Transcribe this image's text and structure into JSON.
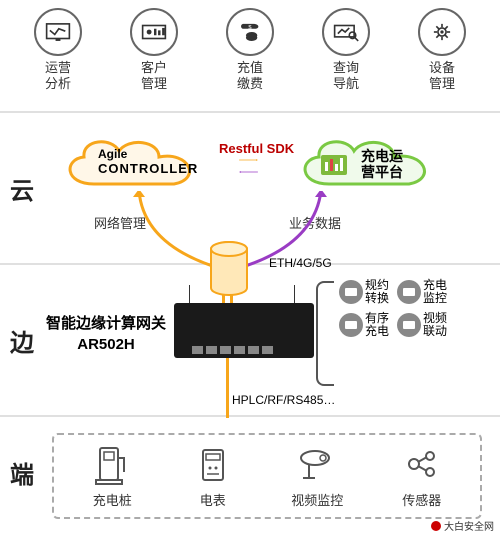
{
  "top_icons": [
    {
      "label": "运营\n分析",
      "name": "analytics-icon"
    },
    {
      "label": "客户\n管理",
      "name": "customer-icon"
    },
    {
      "label": "充值\n缴费",
      "name": "recharge-icon"
    },
    {
      "label": "查询\n导航",
      "name": "query-icon"
    },
    {
      "label": "设备\n管理",
      "name": "device-icon"
    }
  ],
  "layers": {
    "cloud": "云",
    "edge": "边",
    "end": "端"
  },
  "cloud": {
    "controller_top": "Agile",
    "controller_bottom": "CONTROLLER",
    "platform": "充电运\n营平台",
    "sdk": "Restful SDK",
    "link_left": "网络管理",
    "link_right": "业务数据",
    "eth": "ETH/4G/5G"
  },
  "edge": {
    "gateway_line1": "智能边缘计算网关",
    "gateway_line2": "AR502H",
    "features": [
      {
        "label": "规约\n转换"
      },
      {
        "label": "充电\n监控"
      },
      {
        "label": "有序\n充电"
      },
      {
        "label": "视频\n联动"
      }
    ],
    "hplc": "HPLC/RF/RS485…"
  },
  "end": {
    "items": [
      {
        "label": "充电桩",
        "name": "charger-icon"
      },
      {
        "label": "电表",
        "name": "meter-icon"
      },
      {
        "label": "视频监控",
        "name": "camera-icon"
      },
      {
        "label": "传感器",
        "name": "sensor-icon"
      }
    ]
  },
  "colors": {
    "orange": "#f7a61b",
    "purple": "#9a3cc4",
    "green": "#7ac943",
    "cloud_left_stroke": "#f7a61b",
    "cloud_right_stroke": "#7ac943",
    "red": "#b00000",
    "grey": "#888888"
  },
  "footer": "大白安全网"
}
